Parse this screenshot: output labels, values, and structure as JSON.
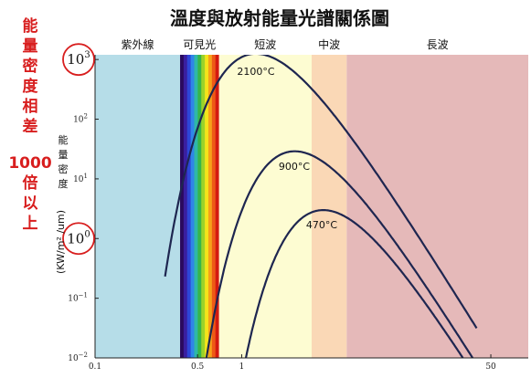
{
  "chart_data": {
    "type": "line",
    "title": "溫度與放射能量光譜關係圖",
    "ylabel_rotated": "(KW/m² /um)",
    "ylabel_stacked": "能量密度",
    "side_note": [
      "能",
      "量",
      "密",
      "度",
      "相",
      "差",
      "1000",
      "倍",
      "以",
      "上"
    ],
    "x_scale": "log",
    "y_scale": "log",
    "xlim": [
      0.1,
      90
    ],
    "ylim": [
      0.01,
      1200
    ],
    "x_ticks": [
      {
        "value": 0.1,
        "label": "0.1"
      },
      {
        "value": 0.5,
        "label": "0.5"
      },
      {
        "value": 1,
        "label": "1"
      },
      {
        "value": 50,
        "label": "50"
      }
    ],
    "y_ticks": [
      {
        "value": 1000,
        "base": "10",
        "exp": "3",
        "circled": true
      },
      {
        "value": 100,
        "base": "10",
        "exp": "2",
        "circled": false
      },
      {
        "value": 10,
        "base": "10",
        "exp": "1",
        "circled": false
      },
      {
        "value": 1,
        "base": "10",
        "exp": "0",
        "circled": true
      },
      {
        "value": 0.1,
        "base": "10",
        "exp": "−1",
        "circled": false
      },
      {
        "value": 0.01,
        "base": "10",
        "exp": "−2",
        "circled": false
      }
    ],
    "bands": [
      {
        "name": "紫外線",
        "from": 0.1,
        "to": 0.38,
        "color": "#b6dde8"
      },
      {
        "name": "可見光",
        "from": 0.38,
        "to": 0.7,
        "color": "spectrum"
      },
      {
        "name": "短波",
        "from": 0.7,
        "to": 3,
        "color": "#fdfcd2"
      },
      {
        "name": "中波",
        "from": 3,
        "to": 5.2,
        "color": "#fad8b6"
      },
      {
        "name": "長波",
        "from": 5.2,
        "to": 90,
        "color": "#e5b9b9"
      }
    ],
    "series": [
      {
        "name": "2100°C",
        "peak_x": 1.25,
        "peak_y": 1250,
        "left_end_x": 0.3,
        "right_end_x": 40
      },
      {
        "name": "900°C",
        "peak_x": 2.3,
        "peak_y": 29,
        "left_end_x": 0.52,
        "right_end_x": 44
      },
      {
        "name": "470°C",
        "peak_x": 3.6,
        "peak_y": 3,
        "left_end_x": 0.95,
        "right_end_x": 50
      }
    ],
    "grid": false,
    "spectrum_colors": [
      "#2a0a5e",
      "#3a1fa0",
      "#2d46d8",
      "#2f86e8",
      "#2fb7a8",
      "#37b54a",
      "#9cd22a",
      "#f4e41b",
      "#f6a11a",
      "#ee5a16",
      "#d41a10"
    ]
  }
}
